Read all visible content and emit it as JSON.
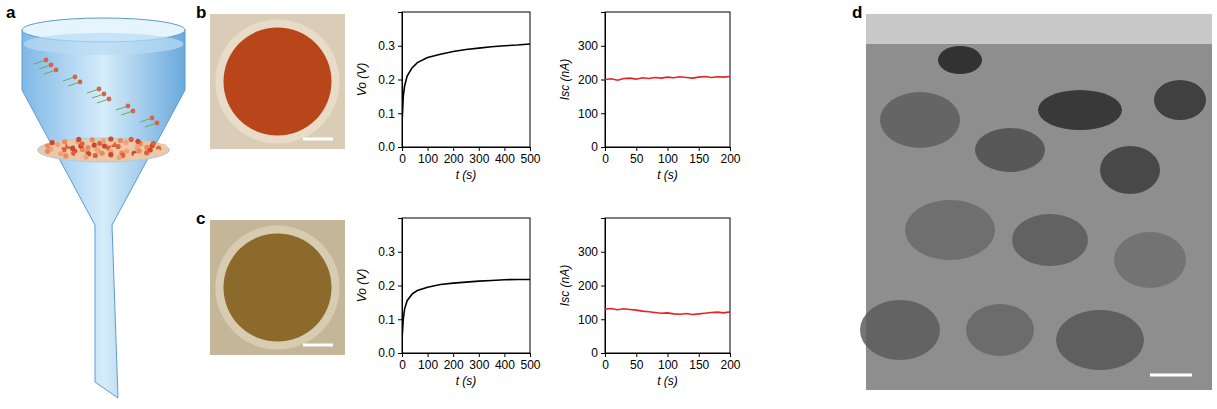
{
  "panel_labels": [
    "a",
    "b",
    "c",
    "d"
  ],
  "chart_data": [
    {
      "type": "line",
      "x_label": "t (s)",
      "y_label": "Vo (V)",
      "color": "#000000",
      "x": [
        0,
        5,
        10,
        20,
        40,
        60,
        100,
        150,
        200,
        250,
        300,
        350,
        400,
        450,
        500
      ],
      "values": [
        0.07,
        0.15,
        0.18,
        0.21,
        0.235,
        0.25,
        0.265,
        0.275,
        0.283,
        0.289,
        0.293,
        0.297,
        0.3,
        0.302,
        0.305
      ],
      "xlim": [
        0,
        500
      ],
      "xticks": [
        0,
        100,
        200,
        300,
        400,
        500
      ],
      "ylim": [
        0,
        0.4
      ],
      "yticks": [
        {
          "value": 0,
          "label": "0.0"
        },
        0.1,
        0.2,
        0.3
      ]
    },
    {
      "type": "line",
      "x_label": "t (s)",
      "y_label": "Isc (nA)",
      "color": "#e8231f",
      "x": [
        0,
        10,
        20,
        30,
        40,
        50,
        60,
        70,
        80,
        90,
        100,
        110,
        120,
        130,
        140,
        150,
        160,
        170,
        180,
        190,
        200
      ],
      "values": [
        200,
        202,
        198,
        203,
        204,
        201,
        205,
        203,
        206,
        204,
        207,
        205,
        208,
        206,
        204,
        207,
        209,
        206,
        208,
        207,
        209
      ],
      "xlim": [
        0,
        200
      ],
      "xticks": [
        0,
        50,
        100,
        150,
        200
      ],
      "ylim": [
        0,
        400
      ],
      "yticks": [
        0,
        100,
        200,
        300
      ]
    },
    {
      "type": "line",
      "x_label": "t (s)",
      "y_label": "Vo (V)",
      "color": "#000000",
      "x": [
        0,
        5,
        10,
        20,
        40,
        60,
        100,
        150,
        200,
        250,
        300,
        350,
        400,
        450,
        500
      ],
      "values": [
        0.04,
        0.1,
        0.13,
        0.155,
        0.175,
        0.185,
        0.195,
        0.203,
        0.207,
        0.21,
        0.213,
        0.215,
        0.217,
        0.218,
        0.218
      ],
      "xlim": [
        0,
        500
      ],
      "xticks": [
        0,
        100,
        200,
        300,
        400,
        500
      ],
      "ylim": [
        0,
        0.4
      ],
      "yticks": [
        {
          "value": 0,
          "label": "0.0"
        },
        0.1,
        0.2,
        0.3
      ]
    },
    {
      "type": "line",
      "x_label": "t (s)",
      "y_label": "Isc (nA)",
      "color": "#e8231f",
      "x": [
        0,
        10,
        20,
        30,
        40,
        50,
        60,
        70,
        80,
        90,
        100,
        110,
        120,
        130,
        140,
        150,
        160,
        170,
        180,
        190,
        200
      ],
      "values": [
        130,
        132,
        128,
        131,
        129,
        127,
        124,
        122,
        120,
        118,
        119,
        116,
        115,
        117,
        114,
        116,
        118,
        120,
        121,
        119,
        122
      ],
      "xlim": [
        0,
        200
      ],
      "xticks": [
        0,
        50,
        100,
        150,
        200
      ],
      "ylim": [
        0,
        400
      ],
      "yticks": [
        0,
        100,
        200,
        300
      ]
    }
  ]
}
